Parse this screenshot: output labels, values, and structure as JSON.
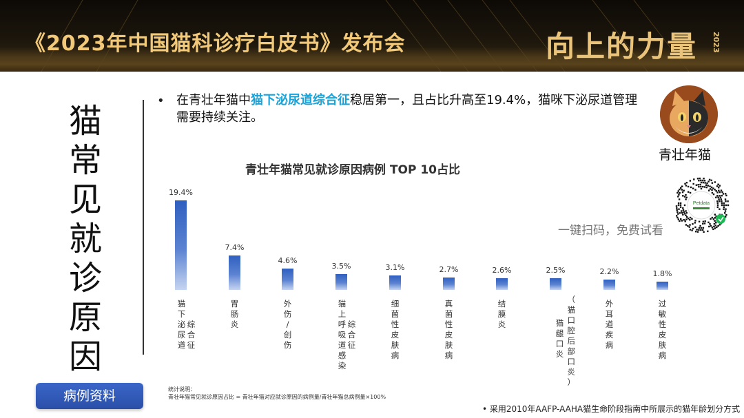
{
  "header": {
    "title": "《2023年中国猫科诊疗白皮书》发布会",
    "brand": "向上的力量",
    "brand_year": "2023"
  },
  "side_title": "猫常见就诊原因",
  "bullet": {
    "prefix": "在青壮年猫中",
    "highlight": "猫下泌尿道综合征",
    "suffix": "稳居第一，且占比升高至19.4%，猫咪下泌尿道管理需要持续关注。"
  },
  "profile": {
    "label": "青壮年猫"
  },
  "qr": {
    "caption": "一键扫码，免费试看",
    "brand_text": "Petdata"
  },
  "button": {
    "label": "病例资料"
  },
  "stat_note": {
    "line1": "统计说明：",
    "line2": "青壮年猫常见就诊原因占比 = 青壮年猫对应就诊原因的病例量/青壮年猫总病例量×100%"
  },
  "footer": "• 采用2010年AAFP-AAHA猫生命阶段指南中所展示的猫年龄划分方式",
  "chart_data": {
    "type": "bar",
    "title": "青壮年猫常见就诊原因病例 TOP 10占比",
    "categories": [
      "猫下泌尿道综合征",
      "胃肠炎",
      "外伤/创伤",
      "猫上呼吸道感染综合征",
      "细菌性皮肤病",
      "真菌性皮肤病",
      "结膜炎",
      "猫龈口炎（猫口腔后部口炎）",
      "外耳道疾病",
      "过敏性皮肤病"
    ],
    "values": [
      19.4,
      7.4,
      4.6,
      3.5,
      3.1,
      2.7,
      2.6,
      2.5,
      2.2,
      1.8
    ],
    "labels": [
      "19.4%",
      "7.4%",
      "4.6%",
      "3.5%",
      "3.1%",
      "2.7%",
      "2.6%",
      "2.5%",
      "2.2%",
      "1.8%"
    ],
    "ylim": [
      0,
      19.4
    ],
    "bar_color": "#3a67c6",
    "grid": false,
    "category_columns": [
      [
        "猫下泌尿道",
        "综合征"
      ],
      [
        "胃肠炎"
      ],
      [
        "外伤/创伤"
      ],
      [
        "猫上呼吸道感染",
        "综合征"
      ],
      [
        "细菌性皮肤病"
      ],
      [
        "真菌性皮肤病"
      ],
      [
        "结膜炎"
      ],
      [
        "猫龈口炎",
        "（猫口腔后部口炎）"
      ],
      [
        "外耳道疾病"
      ],
      [
        "过敏性皮肤病"
      ]
    ]
  },
  "colors": {
    "accent": "#1aa3d9",
    "banner_text": "#f2c979",
    "button": "#2f58b5"
  }
}
